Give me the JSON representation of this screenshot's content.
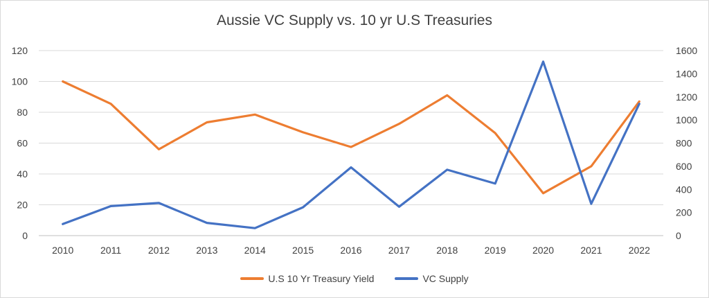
{
  "chart_data": {
    "type": "line",
    "title": "Aussie VC Supply vs. 10 yr U.S Treasuries",
    "x": [
      "2010",
      "2011",
      "2012",
      "2013",
      "2014",
      "2015",
      "2016",
      "2017",
      "2018",
      "2019",
      "2020",
      "2021",
      "2022"
    ],
    "y_left": {
      "ylim": [
        0,
        120
      ],
      "ticks": [
        "0",
        "20",
        "40",
        "60",
        "80",
        "100",
        "120"
      ]
    },
    "y_right": {
      "ylim": [
        0,
        1600
      ],
      "ticks": [
        "0",
        "200",
        "400",
        "600",
        "800",
        "1000",
        "1200",
        "1400",
        "1600"
      ]
    },
    "grid": true,
    "legend_position": "bottom",
    "series": [
      {
        "name": "U.S 10 Yr Treasury Yield",
        "axis": "left",
        "color": "#ED7D31",
        "values": [
          100,
          85.5,
          56,
          73.5,
          78.5,
          67,
          57.5,
          72.5,
          91,
          66.5,
          27.5,
          45,
          87
        ]
      },
      {
        "name": "VC Supply",
        "axis": "right",
        "color": "#4472C4",
        "values": [
          100,
          255,
          282,
          110,
          65,
          245,
          590,
          250,
          570,
          450,
          1505,
          275,
          1140
        ]
      }
    ]
  }
}
